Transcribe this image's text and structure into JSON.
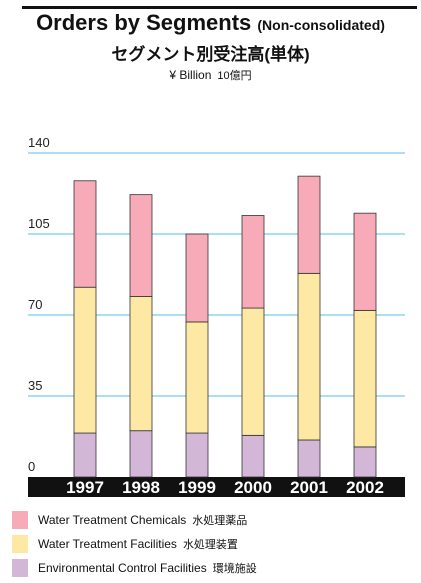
{
  "chart_data": {
    "type": "bar",
    "stacked": true,
    "title": "Orders by Segments",
    "title_note": "(Non-consolidated)",
    "title_jp": "セグメント別受注高(単体)",
    "unit": "¥ Billion",
    "unit_jp": "10億円",
    "categories": [
      "1997",
      "1998",
      "1999",
      "2000",
      "2001",
      "2002"
    ],
    "series": [
      {
        "name": "Environmental Control Facilities",
        "name_jp": "環境施設",
        "color": "#d2b8d6",
        "values": [
          19,
          20,
          19,
          18,
          16,
          13
        ]
      },
      {
        "name": "Water Treatment Facilities",
        "name_jp": "水処理装置",
        "color": "#fde9a4",
        "values": [
          63,
          58,
          48,
          55,
          72,
          59
        ]
      },
      {
        "name": "Water Treatment Chemicals",
        "name_jp": "水処理薬品",
        "color": "#f7aab7",
        "values": [
          46,
          44,
          38,
          40,
          42,
          42
        ]
      }
    ],
    "ylim": [
      0,
      140
    ],
    "yticks": [
      "0",
      "35",
      "70",
      "105",
      "140"
    ],
    "grid": true,
    "gridline_color": "#56c2e6",
    "axis_band_color": "#111111",
    "legend_position": "bottom"
  }
}
